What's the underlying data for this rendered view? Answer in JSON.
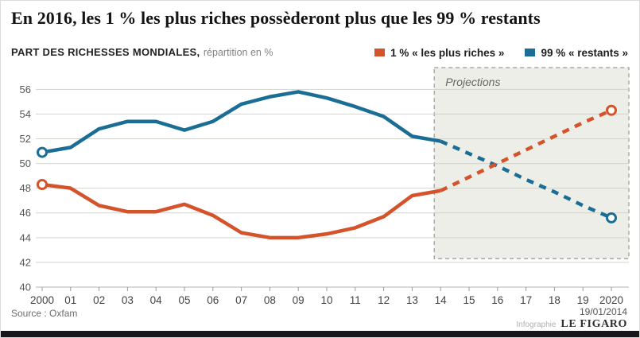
{
  "header": {
    "title": "En 2016, les 1 % les plus riches possèderont plus que les 99 % restants",
    "subtitle_main": "PART DES RICHESSES MONDIALES,",
    "subtitle_note": "répartition en %"
  },
  "legend": [
    {
      "label": "1 % « les plus riches »",
      "color": "#d4532b"
    },
    {
      "label": "99 % « restants »",
      "color": "#1a6e96"
    }
  ],
  "footer": {
    "source": "Source : Oxfam",
    "date": "19/01/2014",
    "credit_label": "Infographie",
    "brand": "LE FIGARO"
  },
  "chart_data": {
    "type": "line",
    "title": "En 2016, les 1 % les plus riches possèderont plus que les 99 % restants",
    "ylabel": "Part des richesses mondiales (%)",
    "x": [
      2000,
      2001,
      2002,
      2003,
      2004,
      2005,
      2006,
      2007,
      2008,
      2009,
      2010,
      2011,
      2012,
      2013,
      2014,
      2015,
      2016,
      2017,
      2018,
      2019,
      2020
    ],
    "x_tick_labels": [
      "2000",
      "01",
      "02",
      "03",
      "04",
      "05",
      "06",
      "07",
      "08",
      "09",
      "10",
      "11",
      "12",
      "13",
      "14",
      "15",
      "16",
      "17",
      "18",
      "19",
      "2020"
    ],
    "ylim": [
      40,
      57.5
    ],
    "yticks": [
      40,
      42,
      44,
      46,
      48,
      50,
      52,
      54,
      56
    ],
    "grid": true,
    "legend_position": "top-right",
    "projection_start_year": 2014,
    "projection_label": "Projections",
    "projection_box_color": "#ecece5",
    "series": [
      {
        "name": "1 % « les plus riches »",
        "color": "#d4532b",
        "values": [
          48.3,
          48.0,
          46.6,
          46.1,
          46.1,
          46.7,
          45.8,
          44.4,
          44.0,
          44.0,
          44.3,
          44.8,
          45.7,
          47.4,
          47.8,
          48.9,
          50.0,
          51.1,
          52.2,
          53.3,
          54.3
        ]
      },
      {
        "name": "99 % « restants »",
        "color": "#1a6e96",
        "values": [
          50.9,
          51.3,
          52.8,
          53.4,
          53.4,
          52.7,
          53.4,
          54.8,
          55.4,
          55.8,
          55.3,
          54.6,
          53.8,
          52.2,
          51.8,
          50.8,
          49.8,
          48.7,
          47.7,
          46.6,
          45.6
        ]
      }
    ]
  }
}
